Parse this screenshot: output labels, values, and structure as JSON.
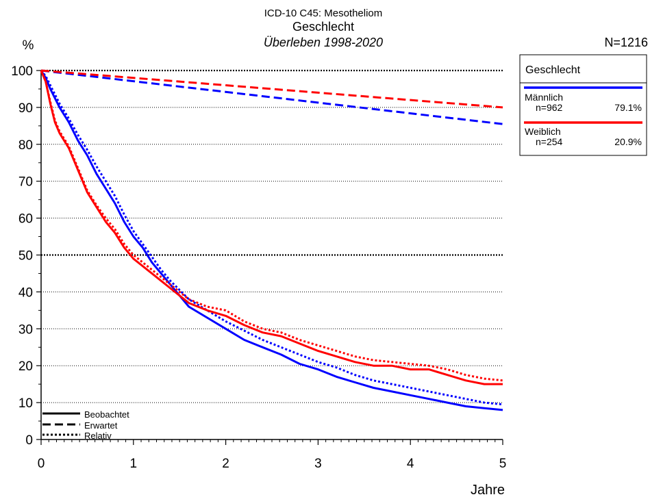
{
  "header": {
    "title": "ICD-10 C45: Mesotheliom",
    "subtitle": "Geschlecht",
    "period": "Überleben 1998-2020",
    "y_unit": "%",
    "n_total": "N=1216"
  },
  "legend_box": {
    "title": "Geschlecht",
    "groups": [
      {
        "name": "Männlich",
        "n": "n=962",
        "pct": "79.1%",
        "color": "#0000ff"
      },
      {
        "name": "Weiblich",
        "n": "n=254",
        "pct": "20.9%",
        "color": "#ff0000"
      }
    ]
  },
  "line_legend": {
    "observed": "Beobachtet",
    "expected": "Erwartet",
    "relative": "Relativ"
  },
  "chart_data": {
    "type": "line",
    "title": "ICD-10 C45: Mesotheliom",
    "xlabel": "Jahre",
    "ylabel": "%",
    "xlim": [
      0,
      5
    ],
    "ylim": [
      0,
      100
    ],
    "x_ticks": [
      0,
      1,
      2,
      3,
      4,
      5
    ],
    "y_ticks": [
      0,
      10,
      20,
      30,
      40,
      50,
      60,
      70,
      80,
      90,
      100
    ],
    "grid": "horizontal dotted",
    "series": [
      {
        "name": "Männlich",
        "kind": "Beobachtet",
        "color": "#0000ff",
        "dash": "solid",
        "x": [
          0,
          0.05,
          0.1,
          0.2,
          0.3,
          0.4,
          0.5,
          0.6,
          0.7,
          0.8,
          0.9,
          1.0,
          1.1,
          1.2,
          1.3,
          1.4,
          1.5,
          1.6,
          1.8,
          2.0,
          2.2,
          2.4,
          2.6,
          2.8,
          3.0,
          3.2,
          3.4,
          3.6,
          3.8,
          4.0,
          4.2,
          4.4,
          4.6,
          4.8,
          5.0
        ],
        "y": [
          100,
          98,
          95,
          90,
          86,
          81,
          77,
          72,
          68,
          64,
          59,
          55,
          52,
          48,
          45,
          42,
          39,
          36,
          33,
          30,
          27,
          25,
          23,
          20.5,
          19,
          17,
          15.5,
          14,
          13,
          12,
          11,
          10,
          9,
          8.5,
          8
        ]
      },
      {
        "name": "Männlich",
        "kind": "Relativ",
        "color": "#0000ff",
        "dash": "dotted",
        "x": [
          0,
          0.05,
          0.1,
          0.2,
          0.3,
          0.4,
          0.5,
          0.6,
          0.7,
          0.8,
          0.9,
          1.0,
          1.1,
          1.2,
          1.3,
          1.4,
          1.5,
          1.6,
          1.8,
          2.0,
          2.2,
          2.4,
          2.6,
          2.8,
          3.0,
          3.2,
          3.4,
          3.6,
          3.8,
          4.0,
          4.2,
          4.4,
          4.6,
          4.8,
          5.0
        ],
        "y": [
          100,
          98.5,
          96,
          91,
          87,
          82.5,
          78.5,
          74,
          70,
          66,
          61,
          56.5,
          53,
          49.5,
          46,
          43,
          40.5,
          38,
          35,
          32,
          29.5,
          27,
          25,
          23,
          21,
          19.5,
          17.5,
          16,
          15,
          14,
          13,
          12,
          11,
          10,
          9.5
        ]
      },
      {
        "name": "Männlich",
        "kind": "Erwartet",
        "color": "#0000ff",
        "dash": "dashed",
        "x": [
          0,
          5
        ],
        "y": [
          100,
          85.5
        ]
      },
      {
        "name": "Weiblich",
        "kind": "Beobachtet",
        "color": "#ff0000",
        "dash": "solid",
        "x": [
          0,
          0.05,
          0.1,
          0.15,
          0.2,
          0.3,
          0.4,
          0.5,
          0.6,
          0.7,
          0.8,
          0.9,
          1.0,
          1.1,
          1.2,
          1.3,
          1.4,
          1.5,
          1.6,
          1.8,
          2.0,
          2.2,
          2.4,
          2.6,
          2.8,
          3.0,
          3.2,
          3.4,
          3.6,
          3.8,
          4.0,
          4.2,
          4.4,
          4.6,
          4.8,
          5.0
        ],
        "y": [
          100,
          97,
          91,
          86,
          83,
          79,
          73,
          67,
          63,
          59,
          56,
          52,
          49,
          47,
          45,
          43,
          41,
          39,
          37,
          35,
          33.5,
          31,
          29,
          28,
          26,
          24,
          22.5,
          21,
          20,
          20,
          19,
          19,
          17.5,
          16,
          15,
          15
        ]
      },
      {
        "name": "Weiblich",
        "kind": "Relativ",
        "color": "#ff0000",
        "dash": "dotted",
        "x": [
          0,
          0.05,
          0.1,
          0.15,
          0.2,
          0.3,
          0.4,
          0.5,
          0.6,
          0.7,
          0.8,
          0.9,
          1.0,
          1.1,
          1.2,
          1.3,
          1.4,
          1.5,
          1.6,
          1.8,
          2.0,
          2.2,
          2.4,
          2.6,
          2.8,
          3.0,
          3.2,
          3.4,
          3.6,
          3.8,
          4.0,
          4.2,
          4.4,
          4.6,
          4.8,
          5.0
        ],
        "y": [
          100,
          97,
          91.5,
          86.5,
          83.5,
          79.5,
          73.5,
          67.5,
          63.5,
          60,
          57,
          53,
          50,
          48,
          46,
          44,
          42,
          40,
          38,
          36,
          35,
          32,
          30,
          29,
          27,
          25.5,
          24,
          22.5,
          21.5,
          21,
          20.5,
          20,
          19,
          17.5,
          16.5,
          16
        ]
      },
      {
        "name": "Weiblich",
        "kind": "Erwartet",
        "color": "#ff0000",
        "dash": "dashed",
        "x": [
          0,
          5
        ],
        "y": [
          100,
          90
        ]
      }
    ]
  }
}
